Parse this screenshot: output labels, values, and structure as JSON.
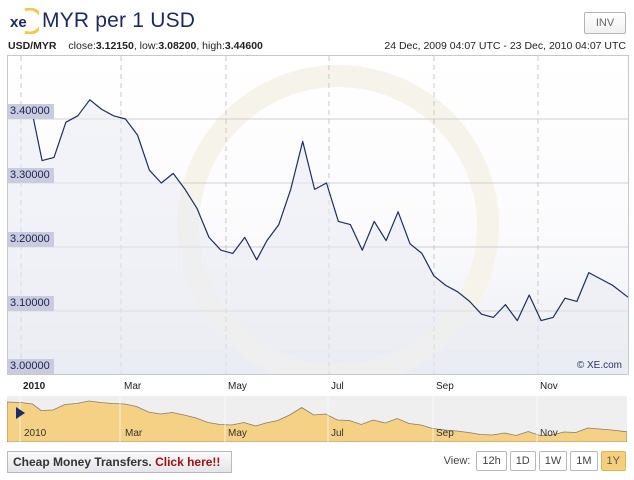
{
  "header": {
    "logo_text": "xe",
    "title": "MYR per 1 USD",
    "inv_button": "INV"
  },
  "stats": {
    "pair": "USD/MYR",
    "close_label": "close:",
    "close": "3.12150",
    "low_label": ", low:",
    "low": "3.08200",
    "high_label": ", high:",
    "high": "3.44600",
    "date_range": "24 Dec, 2009 04:07 UTC - 23 Dec, 2010 04:07 UTC"
  },
  "y_axis": {
    "labels": [
      "3.40000",
      "3.30000",
      "3.20000",
      "3.10000",
      "3.00000"
    ]
  },
  "x_axis": {
    "labels": [
      "2010",
      "Mar",
      "May",
      "Jul",
      "Sep",
      "Nov"
    ]
  },
  "navigator": {
    "labels": [
      "2010",
      "Mar",
      "May",
      "Jul",
      "Sep",
      "Nov"
    ]
  },
  "copyright": "© XE.com",
  "promo": {
    "text": "Cheap Money Transfers.",
    "cta": "Click here!!"
  },
  "view": {
    "label": "View:",
    "options": [
      "12h",
      "1D",
      "1W",
      "1M",
      "1Y"
    ],
    "selected": "1Y"
  },
  "colors": {
    "line": "#1b2f5e",
    "grid": "#cccccc",
    "navigator_fill": "#f5d185",
    "active_view": "#f5cf7c",
    "cta": "#a01010"
  },
  "chart_data": {
    "type": "line",
    "title": "MYR per 1 USD",
    "subtitle": "USD/MYR close:3.12150, low:3.08200, high:3.44600",
    "xlabel": "",
    "ylabel": "",
    "ylim": [
      3.0,
      3.5
    ],
    "y_ticks": [
      3.0,
      3.1,
      3.2,
      3.3,
      3.4
    ],
    "x_ticks": [
      "2010",
      "Mar",
      "May",
      "Jul",
      "Sep",
      "Nov"
    ],
    "grid": true,
    "legend": "none",
    "x_range": "24 Dec 2009 - 23 Dec 2010",
    "series": [
      {
        "name": "USD/MYR",
        "x": [
          "2009-12-24",
          "2010-01-01",
          "2010-01-08",
          "2010-01-13",
          "2010-01-20",
          "2010-01-27",
          "2010-02-03",
          "2010-02-10",
          "2010-02-17",
          "2010-02-24",
          "2010-03-03",
          "2010-03-10",
          "2010-03-17",
          "2010-03-24",
          "2010-03-31",
          "2010-04-07",
          "2010-04-14",
          "2010-04-21",
          "2010-04-28",
          "2010-05-05",
          "2010-05-12",
          "2010-05-19",
          "2010-05-25",
          "2010-06-01",
          "2010-06-08",
          "2010-06-15",
          "2010-06-22",
          "2010-06-29",
          "2010-07-06",
          "2010-07-13",
          "2010-07-20",
          "2010-07-27",
          "2010-08-03",
          "2010-08-10",
          "2010-08-17",
          "2010-08-24",
          "2010-08-31",
          "2010-09-07",
          "2010-09-14",
          "2010-09-21",
          "2010-09-28",
          "2010-10-05",
          "2010-10-12",
          "2010-10-19",
          "2010-10-26",
          "2010-11-02",
          "2010-11-09",
          "2010-11-16",
          "2010-11-23",
          "2010-11-30",
          "2010-12-07",
          "2010-12-14",
          "2010-12-23"
        ],
        "values": [
          3.42,
          3.415,
          3.4,
          3.335,
          3.34,
          3.395,
          3.405,
          3.43,
          3.415,
          3.405,
          3.4,
          3.375,
          3.32,
          3.3,
          3.315,
          3.29,
          3.26,
          3.215,
          3.195,
          3.19,
          3.215,
          3.18,
          3.21,
          3.235,
          3.29,
          3.365,
          3.29,
          3.3,
          3.24,
          3.235,
          3.195,
          3.24,
          3.21,
          3.255,
          3.205,
          3.19,
          3.155,
          3.14,
          3.13,
          3.115,
          3.095,
          3.09,
          3.11,
          3.085,
          3.125,
          3.085,
          3.09,
          3.12,
          3.115,
          3.16,
          3.15,
          3.14,
          3.1215
        ]
      }
    ]
  }
}
